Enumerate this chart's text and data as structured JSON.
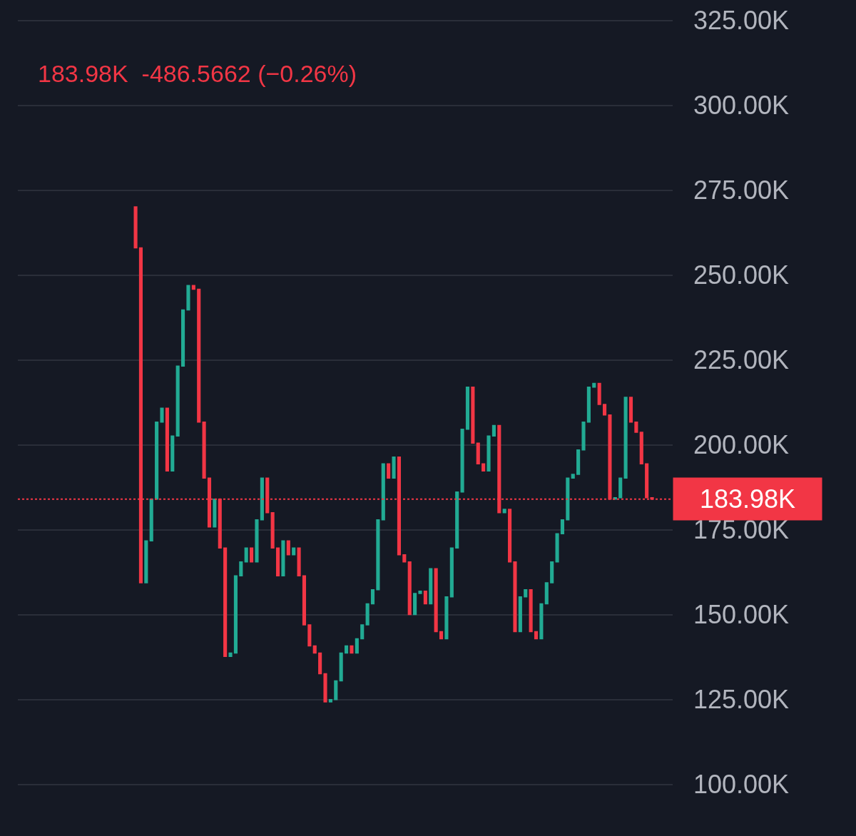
{
  "chart_data": {
    "type": "candlestick",
    "subtitle": "183.98K  -486.5662 (−0.26%)",
    "categories": [
      null,
      null,
      null,
      null,
      null,
      null,
      null,
      null,
      null,
      null,
      null,
      null,
      null,
      null,
      null,
      null,
      null,
      null,
      null,
      null,
      null,
      null,
      null,
      null,
      null,
      null,
      null,
      null,
      null,
      null,
      null,
      null,
      null,
      null,
      null,
      null,
      null,
      null,
      null,
      null,
      null,
      null,
      null,
      null,
      null,
      null,
      null,
      null,
      null,
      null,
      null,
      null,
      null,
      null,
      null,
      null,
      null,
      null,
      null,
      null,
      null,
      null,
      null,
      null,
      null,
      null,
      null,
      null,
      null,
      null,
      null,
      null,
      null,
      null,
      null,
      null,
      null,
      null,
      null,
      null,
      null,
      null,
      null,
      null,
      null,
      null,
      null,
      null,
      null,
      null,
      null,
      null,
      null,
      null,
      null,
      null,
      null,
      null,
      null
    ],
    "ohlc": [
      [
        270100,
        270100,
        258000,
        258000
      ],
      [
        258000,
        258000,
        159400,
        159400
      ],
      [
        159400,
        171700,
        159400,
        171700
      ],
      [
        171700,
        184000,
        171700,
        184000
      ],
      [
        184000,
        206700,
        184000,
        206700
      ],
      [
        206700,
        210800,
        206700,
        210800
      ],
      [
        210800,
        210800,
        192300,
        192300
      ],
      [
        192300,
        202600,
        192300,
        202600
      ],
      [
        202600,
        223200,
        202600,
        223200
      ],
      [
        223200,
        239700,
        223200,
        239700
      ],
      [
        239700,
        246900,
        239700,
        246900
      ],
      [
        246900,
        246900,
        245800,
        245800
      ],
      [
        245800,
        245800,
        206700,
        206700
      ],
      [
        206700,
        206700,
        190200,
        190200
      ],
      [
        190200,
        190200,
        175800,
        175800
      ],
      [
        175800,
        184000,
        175800,
        184000
      ],
      [
        184000,
        184000,
        169600,
        169600
      ],
      [
        169600,
        169600,
        137700,
        137700
      ],
      [
        137700,
        138700,
        137700,
        138700
      ],
      [
        138700,
        161400,
        138700,
        161400
      ],
      [
        161400,
        165500,
        161400,
        165500
      ],
      [
        165500,
        169600,
        165500,
        169600
      ],
      [
        169600,
        169600,
        165500,
        165500
      ],
      [
        165500,
        177900,
        165500,
        177900
      ],
      [
        177900,
        190200,
        177900,
        190200
      ],
      [
        190200,
        190200,
        180000,
        180000
      ],
      [
        180000,
        180000,
        169600,
        169600
      ],
      [
        169600,
        169600,
        161400,
        161400
      ],
      [
        161400,
        171700,
        161400,
        171700
      ],
      [
        171700,
        171700,
        167600,
        167600
      ],
      [
        167600,
        169600,
        167600,
        169600
      ],
      [
        169600,
        169600,
        161400,
        161400
      ],
      [
        161400,
        161400,
        147000,
        147000
      ],
      [
        147000,
        147000,
        140800,
        140800
      ],
      [
        140800,
        140800,
        138700,
        138700
      ],
      [
        138700,
        138700,
        132600,
        132600
      ],
      [
        132600,
        132600,
        124300,
        124300
      ],
      [
        124300,
        125000,
        124300,
        125000
      ],
      [
        125000,
        130500,
        125000,
        130500
      ],
      [
        130500,
        138700,
        130500,
        138700
      ],
      [
        138700,
        140800,
        138700,
        140800
      ],
      [
        140800,
        140800,
        138700,
        138700
      ],
      [
        138700,
        142900,
        138700,
        142900
      ],
      [
        142900,
        147000,
        142900,
        147000
      ],
      [
        147000,
        153200,
        147000,
        153200
      ],
      [
        153200,
        157300,
        153200,
        157300
      ],
      [
        157300,
        177900,
        157300,
        177900
      ],
      [
        177900,
        194400,
        177900,
        194400
      ],
      [
        194400,
        194400,
        190200,
        190200
      ],
      [
        190200,
        196400,
        190200,
        196400
      ],
      [
        196400,
        196400,
        167600,
        167600
      ],
      [
        167600,
        167600,
        165500,
        165500
      ],
      [
        165500,
        165500,
        150000,
        150000
      ],
      [
        150000,
        156200,
        150000,
        156200
      ],
      [
        156200,
        156900,
        156200,
        156900
      ],
      [
        156900,
        156900,
        153200,
        153200
      ],
      [
        153200,
        163500,
        153200,
        163500
      ],
      [
        163500,
        163500,
        145000,
        145000
      ],
      [
        145000,
        145000,
        142900,
        142900
      ],
      [
        142900,
        155200,
        142900,
        155200
      ],
      [
        155200,
        169600,
        155200,
        169600
      ],
      [
        169600,
        186100,
        169600,
        186100
      ],
      [
        186100,
        204600,
        186100,
        204600
      ],
      [
        204600,
        217000,
        204600,
        217000
      ],
      [
        217000,
        217000,
        200500,
        200500
      ],
      [
        200500,
        200500,
        194400,
        194400
      ],
      [
        194400,
        194400,
        192300,
        192300
      ],
      [
        192300,
        202600,
        192300,
        202600
      ],
      [
        202600,
        205700,
        202600,
        205700
      ],
      [
        205700,
        205700,
        180000,
        180000
      ],
      [
        180000,
        181000,
        180000,
        181000
      ],
      [
        181000,
        181000,
        165500,
        165500
      ],
      [
        165500,
        165500,
        145000,
        145000
      ],
      [
        145000,
        155200,
        145000,
        155200
      ],
      [
        155200,
        157300,
        155200,
        157300
      ],
      [
        157300,
        157300,
        145000,
        145000
      ],
      [
        145000,
        145000,
        142900,
        142900
      ],
      [
        142900,
        153200,
        142900,
        153200
      ],
      [
        153200,
        159400,
        153200,
        159400
      ],
      [
        159400,
        165500,
        159400,
        165500
      ],
      [
        165500,
        173800,
        165500,
        173800
      ],
      [
        173800,
        177900,
        173800,
        177900
      ],
      [
        177900,
        190200,
        177900,
        190200
      ],
      [
        190200,
        191300,
        190200,
        191300
      ],
      [
        191300,
        198500,
        191300,
        198500
      ],
      [
        198500,
        206700,
        198500,
        206700
      ],
      [
        206700,
        217000,
        206700,
        217000
      ],
      [
        217000,
        218100,
        217000,
        218100
      ],
      [
        218100,
        218100,
        211900,
        211900
      ],
      [
        211900,
        211900,
        208800,
        208800
      ],
      [
        208800,
        208800,
        184000,
        184000
      ],
      [
        184000,
        184400,
        184000,
        184400
      ],
      [
        184400,
        190200,
        184400,
        190200
      ],
      [
        190200,
        214000,
        190200,
        214000
      ],
      [
        214000,
        214000,
        206700,
        206700
      ],
      [
        206700,
        206700,
        203700,
        203700
      ],
      [
        203700,
        203700,
        194400,
        194400
      ],
      [
        194400,
        194400,
        184400,
        184400
      ],
      [
        184400,
        184400,
        183980,
        183980
      ]
    ],
    "colors": [
      "#f23645",
      "#f23645",
      "#22ab94",
      "#22ab94",
      "#22ab94",
      "#22ab94",
      "#f23645",
      "#22ab94",
      "#22ab94",
      "#22ab94",
      "#22ab94",
      "#f23645",
      "#f23645",
      "#f23645",
      "#f23645",
      "#22ab94",
      "#f23645",
      "#f23645",
      "#22ab94",
      "#22ab94",
      "#22ab94",
      "#22ab94",
      "#f23645",
      "#22ab94",
      "#22ab94",
      "#f23645",
      "#f23645",
      "#f23645",
      "#22ab94",
      "#f23645",
      "#22ab94",
      "#f23645",
      "#f23645",
      "#f23645",
      "#f23645",
      "#f23645",
      "#f23645",
      "#22ab94",
      "#22ab94",
      "#22ab94",
      "#22ab94",
      "#f23645",
      "#22ab94",
      "#22ab94",
      "#22ab94",
      "#22ab94",
      "#22ab94",
      "#22ab94",
      "#f23645",
      "#22ab94",
      "#f23645",
      "#f23645",
      "#f23645",
      "#22ab94",
      "#22ab94",
      "#f23645",
      "#22ab94",
      "#f23645",
      "#f23645",
      "#22ab94",
      "#22ab94",
      "#22ab94",
      "#22ab94",
      "#22ab94",
      "#f23645",
      "#f23645",
      "#f23645",
      "#22ab94",
      "#22ab94",
      "#f23645",
      "#22ab94",
      "#f23645",
      "#f23645",
      "#22ab94",
      "#22ab94",
      "#f23645",
      "#f23645",
      "#22ab94",
      "#22ab94",
      "#22ab94",
      "#22ab94",
      "#22ab94",
      "#22ab94",
      "#22ab94",
      "#22ab94",
      "#22ab94",
      "#22ab94",
      "#22ab94",
      "#f23645",
      "#f23645",
      "#f23645",
      "#22ab94",
      "#22ab94",
      "#22ab94",
      "#f23645",
      "#f23645",
      "#f23645",
      "#f23645",
      "#f23645"
    ],
    "ylim": [
      84800,
      331000
    ],
    "yticks": [
      {
        "value": 100000,
        "label": "100.00K"
      },
      {
        "value": 125000,
        "label": "125.00K"
      },
      {
        "value": 150000,
        "label": "150.00K"
      },
      {
        "value": 175000,
        "label": "175.00K"
      },
      {
        "value": 200000,
        "label": "200.00K"
      },
      {
        "value": 225000,
        "label": "225.00K"
      },
      {
        "value": 250000,
        "label": "250.00K"
      },
      {
        "value": 275000,
        "label": "275.00K"
      },
      {
        "value": 300000,
        "label": "300.00K"
      },
      {
        "value": 325000,
        "label": "325.00K"
      }
    ],
    "ref_lines": [
      {
        "axis": "y",
        "value": 183980,
        "label": "183.98K",
        "color": "#f23645",
        "line_style": "dotted"
      }
    ],
    "grid": "y"
  }
}
